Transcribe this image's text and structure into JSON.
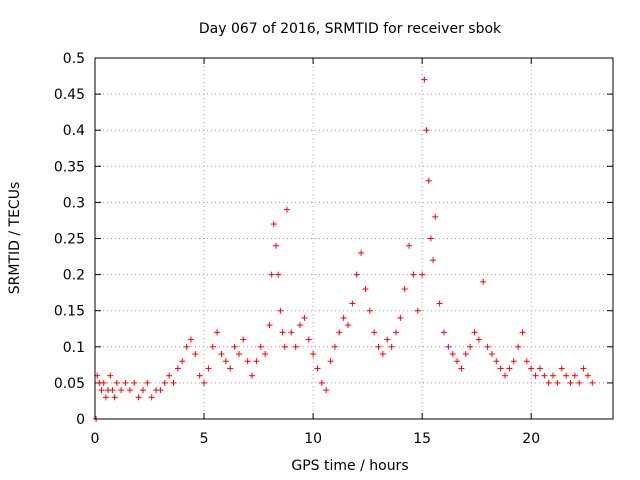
{
  "chart_data": {
    "type": "scatter",
    "title": "Day 067 of 2016, SRMTID for receiver sbok",
    "xlabel": "GPS time / hours",
    "ylabel": "SRMTID / TECUs",
    "xlim": [
      0,
      23.75
    ],
    "ylim": [
      0,
      0.5
    ],
    "x_ticks": [
      0,
      5,
      10,
      15,
      20
    ],
    "x_tick_labels": [
      "0",
      "5",
      "10",
      "15",
      "20"
    ],
    "y_ticks": [
      0,
      0.05,
      0.1,
      0.15,
      0.2,
      0.25,
      0.3,
      0.35,
      0.4,
      0.45,
      0.5
    ],
    "y_tick_labels": [
      "0",
      "0.05",
      "0.1",
      "0.15",
      "0.2",
      "0.25",
      "0.3",
      "0.35",
      "0.4",
      "0.45",
      "0.5"
    ],
    "grid": true,
    "marker": "+",
    "marker_color": "#ff0000",
    "series": [
      {
        "name": "SRMTID",
        "x": [
          0.05,
          0.1,
          0.2,
          0.3,
          0.4,
          0.5,
          0.6,
          0.7,
          0.8,
          0.9,
          1.0,
          1.2,
          1.4,
          1.6,
          1.8,
          2.0,
          2.2,
          2.4,
          2.6,
          2.8,
          3.0,
          3.2,
          3.4,
          3.6,
          3.8,
          4.0,
          4.2,
          4.4,
          4.6,
          4.8,
          5.0,
          5.2,
          5.4,
          5.6,
          5.8,
          6.0,
          6.2,
          6.4,
          6.6,
          6.8,
          7.0,
          7.2,
          7.4,
          7.6,
          7.8,
          8.0,
          8.1,
          8.2,
          8.3,
          8.4,
          8.5,
          8.6,
          8.7,
          8.8,
          9.0,
          9.2,
          9.4,
          9.6,
          9.8,
          10.0,
          10.2,
          10.4,
          10.6,
          10.8,
          11.0,
          11.2,
          11.4,
          11.6,
          11.8,
          12.0,
          12.2,
          12.4,
          12.6,
          12.8,
          13.0,
          13.2,
          13.4,
          13.6,
          13.8,
          14.0,
          14.2,
          14.4,
          14.6,
          14.8,
          15.0,
          15.1,
          15.2,
          15.3,
          15.4,
          15.5,
          15.6,
          15.8,
          16.0,
          16.2,
          16.4,
          16.6,
          16.8,
          17.0,
          17.2,
          17.4,
          17.6,
          17.8,
          18.0,
          18.2,
          18.4,
          18.6,
          18.8,
          19.0,
          19.2,
          19.4,
          19.6,
          19.8,
          20.0,
          20.2,
          20.4,
          20.6,
          20.8,
          21.0,
          21.2,
          21.4,
          21.6,
          21.8,
          22.0,
          22.2,
          22.4,
          22.6,
          22.8
        ],
        "y": [
          0.0,
          0.06,
          0.05,
          0.04,
          0.05,
          0.03,
          0.04,
          0.06,
          0.04,
          0.03,
          0.05,
          0.04,
          0.05,
          0.04,
          0.05,
          0.03,
          0.04,
          0.05,
          0.03,
          0.04,
          0.04,
          0.05,
          0.06,
          0.05,
          0.07,
          0.08,
          0.1,
          0.11,
          0.09,
          0.06,
          0.05,
          0.07,
          0.1,
          0.12,
          0.09,
          0.08,
          0.07,
          0.1,
          0.09,
          0.11,
          0.08,
          0.06,
          0.08,
          0.1,
          0.09,
          0.13,
          0.2,
          0.27,
          0.24,
          0.2,
          0.15,
          0.12,
          0.1,
          0.29,
          0.12,
          0.1,
          0.13,
          0.14,
          0.11,
          0.09,
          0.07,
          0.05,
          0.04,
          0.08,
          0.1,
          0.12,
          0.14,
          0.13,
          0.16,
          0.2,
          0.23,
          0.18,
          0.15,
          0.12,
          0.1,
          0.09,
          0.11,
          0.1,
          0.12,
          0.14,
          0.18,
          0.24,
          0.2,
          0.15,
          0.2,
          0.47,
          0.4,
          0.33,
          0.25,
          0.22,
          0.28,
          0.16,
          0.12,
          0.1,
          0.09,
          0.08,
          0.07,
          0.09,
          0.1,
          0.12,
          0.11,
          0.19,
          0.1,
          0.09,
          0.08,
          0.07,
          0.06,
          0.07,
          0.08,
          0.1,
          0.12,
          0.08,
          0.07,
          0.06,
          0.07,
          0.06,
          0.05,
          0.06,
          0.05,
          0.07,
          0.06,
          0.05,
          0.06,
          0.05,
          0.07,
          0.06,
          0.05
        ]
      }
    ]
  }
}
